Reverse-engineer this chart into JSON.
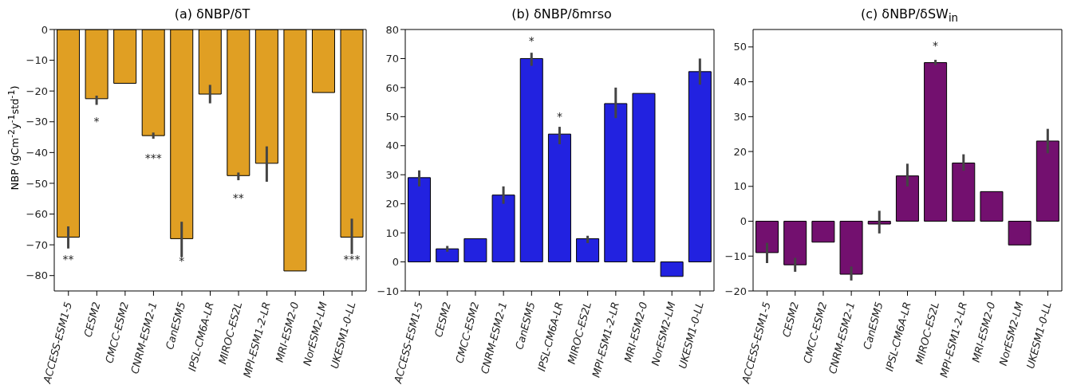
{
  "chart_data": [
    {
      "type": "bar",
      "title": "(a) δNBP/δT",
      "ylabel": "NBP (gCm$^{-2}$y$^{-1}$std$^{-1}$)",
      "categories": [
        "ACCESS-ESM1-5",
        "CESM2",
        "CMCC-ESM2",
        "CNRM-ESM2-1",
        "CanESM5",
        "IPSL-CM6A-LR",
        "MIROC-ES2L",
        "MPI-ESM1-2-LR",
        "MRI-ESM2-0",
        "NorESM2-LM",
        "UKESM1-0-LL"
      ],
      "series": [
        {
          "color": "#e09f23",
          "values": [
            -67.5,
            -22.5,
            -17.5,
            -34.5,
            -68,
            -21,
            -47.5,
            -43.5,
            -78.5,
            -20.5,
            -67.5
          ],
          "errors": [
            [
              -71.2,
              -64
            ],
            [
              -24.5,
              -21.5
            ],
            null,
            [
              -35.5,
              -33.5
            ],
            [
              -74,
              -62.5
            ],
            [
              -24,
              -18
            ],
            [
              -49,
              -46.5
            ],
            [
              -49.5,
              -38
            ],
            null,
            null,
            [
              -73,
              -61.5
            ]
          ],
          "value_labels": [
            "**",
            "*",
            null,
            "***",
            "*",
            null,
            "**",
            null,
            null,
            null,
            "***"
          ]
        }
      ],
      "ylim": [
        -85,
        0
      ],
      "yticks": [
        -80,
        -70,
        -60,
        -50,
        -40,
        -30,
        -20,
        -10,
        0
      ]
    },
    {
      "type": "bar",
      "title": "(b) δNBP/δmrso",
      "categories": [
        "ACCESS-ESM1-5",
        "CESM2",
        "CMCC-ESM2",
        "CNRM-ESM2-1",
        "CanESM5",
        "IPSL-CM6A-LR",
        "MIROC-ES2L",
        "MPI-ESM1-2-LR",
        "MRI-ESM2-0",
        "NorESM2-LM",
        "UKESM1-0-LL"
      ],
      "series": [
        {
          "color": "#2222e0",
          "values": [
            29,
            4.5,
            8,
            23,
            70,
            44,
            8,
            54.5,
            58,
            -5,
            65.5
          ],
          "errors": [
            [
              26,
              31.5
            ],
            [
              3.5,
              5.5
            ],
            null,
            [
              20,
              26
            ],
            [
              67.5,
              72
            ],
            [
              40.5,
              46.5
            ],
            [
              6.5,
              9
            ],
            [
              49.5,
              60
            ],
            null,
            null,
            [
              61,
              70
            ]
          ],
          "value_labels": [
            null,
            null,
            null,
            null,
            "*",
            "*",
            null,
            null,
            null,
            null,
            null
          ]
        }
      ],
      "ylim": [
        -10,
        80
      ],
      "yticks": [
        -10,
        0,
        10,
        20,
        30,
        40,
        50,
        60,
        70,
        80
      ]
    },
    {
      "type": "bar",
      "title": "(c) δNBP/δSW$_{in}$",
      "categories": [
        "ACCESS-ESM1-5",
        "CESM2",
        "CMCC-ESM2",
        "CNRM-ESM2-1",
        "CanESM5",
        "IPSL-CM6A-LR",
        "MIROC-ES2L",
        "MPI-ESM1-2-LR",
        "MRI-ESM2-0",
        "NorESM2-LM",
        "UKESM1-0-LL"
      ],
      "series": [
        {
          "color": "#73106f",
          "values": [
            -9,
            -12.5,
            -6,
            -15.2,
            -0.8,
            13,
            45.5,
            16.7,
            8.5,
            -6.8,
            23
          ],
          "errors": [
            [
              -12,
              -6.2
            ],
            [
              -14.5,
              -10.5
            ],
            null,
            [
              -17,
              -13
            ],
            [
              -3.5,
              3
            ],
            [
              10,
              16.5
            ],
            [
              44.8,
              46.3
            ],
            [
              14.5,
              19.2
            ],
            null,
            null,
            [
              19.5,
              26.5
            ]
          ],
          "value_labels": [
            null,
            null,
            null,
            null,
            null,
            null,
            "*",
            null,
            null,
            null,
            null
          ]
        }
      ],
      "ylim": [
        -20,
        55
      ],
      "yticks": [
        -20,
        -10,
        0,
        10,
        20,
        30,
        40,
        50
      ]
    }
  ]
}
